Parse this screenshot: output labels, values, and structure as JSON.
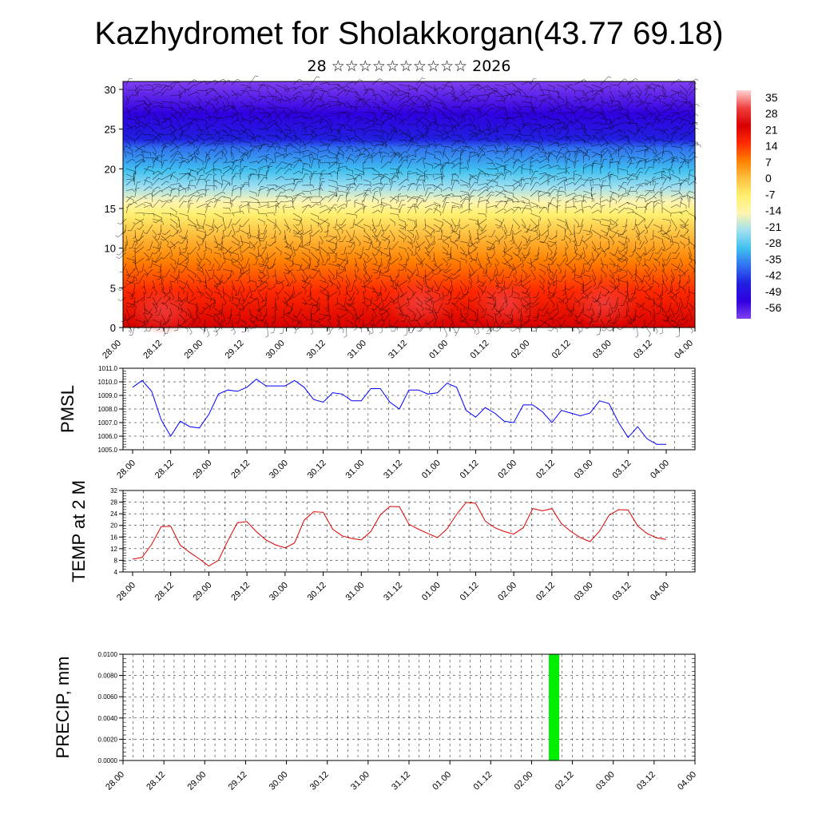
{
  "title": "Kazhydromet for Sholakkorgan(43.77 69.18)",
  "subtitle": "28 ☆☆☆☆☆☆☆☆☆☆ 2026",
  "time_labels": [
    "28.00",
    "28.12",
    "29.00",
    "29.12",
    "30.00",
    "30.12",
    "31.00",
    "31.12",
    "01.00",
    "01.12",
    "02.00",
    "02.12",
    "03.00",
    "03.12",
    "04.00"
  ],
  "chart_data": [
    {
      "type": "heatmap",
      "name": "cross-section",
      "x_labels": [
        "28.00",
        "28.12",
        "29.00",
        "29.12",
        "30.00",
        "30.12",
        "31.00",
        "31.12",
        "01.00",
        "01.12",
        "02.00",
        "02.12",
        "03.00",
        "03.12",
        "04.00"
      ],
      "y_ticks": [
        "0",
        "5",
        "10",
        "15",
        "20",
        "25",
        "30"
      ],
      "ylim": [
        0,
        31
      ],
      "colorbar_labels": [
        "35",
        "28",
        "21",
        "14",
        "7",
        "0",
        "-7",
        "-14",
        "-21",
        "-28",
        "-35",
        "-42",
        "-49",
        "-56"
      ],
      "colors": {
        "palette": [
          "#ffd4d4",
          "#f04040",
          "#d80000",
          "#ff2a00",
          "#ff8000",
          "#ffc040",
          "#fff070",
          "#fff5b0",
          "#a0e0f0",
          "#40c0f0",
          "#3070f0",
          "#2020e0",
          "#3000e0",
          "#8040f0"
        ],
        "wind_barbs": "#000000"
      },
      "note": "temperature and wind vs. height; barbs rendered decoratively"
    },
    {
      "type": "line",
      "name": "pmsl",
      "ylabel": "PMSL",
      "y_ticks": [
        "1005.0",
        "1006.0",
        "1007.0",
        "1008.0",
        "1009.0",
        "1010.0",
        "1011.0"
      ],
      "ylim": [
        1005,
        1011
      ],
      "color": "#0000ff",
      "values": [
        1009.6,
        1010.1,
        1009.3,
        1007.2,
        1006.0,
        1007.1,
        1006.7,
        1006.6,
        1007.6,
        1009.1,
        1009.4,
        1009.3,
        1009.6,
        1010.2,
        1009.7,
        1009.7,
        1009.7,
        1010.1,
        1009.6,
        1008.7,
        1008.5,
        1009.2,
        1009.1,
        1008.6,
        1008.6,
        1009.5,
        1009.5,
        1008.5,
        1008.0,
        1009.4,
        1009.4,
        1009.1,
        1009.2,
        1009.9,
        1009.6,
        1007.9,
        1007.4,
        1008.1,
        1007.7,
        1007.1,
        1007.0,
        1008.3,
        1008.3,
        1007.8,
        1007.0,
        1007.9,
        1007.7,
        1007.5,
        1007.7,
        1008.6,
        1008.4,
        1007.0,
        1005.9,
        1006.7,
        1005.8,
        1005.4,
        1005.4
      ]
    },
    {
      "type": "line",
      "name": "temp2m",
      "ylabel": "TEMP at 2 M",
      "y_ticks": [
        "4",
        "8",
        "12",
        "16",
        "20",
        "24",
        "28",
        "32"
      ],
      "ylim": [
        4,
        32
      ],
      "color": "#e00000",
      "values": [
        8.4,
        9.0,
        13.5,
        19.6,
        19.7,
        13.2,
        10.7,
        8.5,
        6.0,
        8.0,
        14.8,
        20.9,
        21.3,
        17.8,
        15.0,
        13.3,
        12.3,
        14.0,
        21.8,
        24.7,
        24.5,
        18.7,
        16.4,
        15.5,
        15.0,
        17.9,
        23.6,
        26.5,
        26.4,
        20.4,
        18.7,
        17.2,
        15.8,
        18.8,
        23.8,
        27.9,
        27.6,
        21.5,
        19.2,
        17.9,
        17.0,
        19.2,
        25.8,
        25.0,
        25.8,
        20.6,
        17.9,
        15.8,
        14.4,
        18.0,
        23.5,
        25.4,
        25.3,
        19.8,
        17.2,
        15.7,
        15.2
      ]
    },
    {
      "type": "bar",
      "name": "precip",
      "ylabel": "PRECIP, mm",
      "y_ticks": [
        "0.0000",
        "0.0020",
        "0.0040",
        "0.0060",
        "0.0080",
        "0.0100"
      ],
      "ylim": [
        0,
        0.01
      ],
      "color": "#00ee00",
      "bars": [
        {
          "x_index": 10.55,
          "value": 0.01
        }
      ]
    }
  ]
}
